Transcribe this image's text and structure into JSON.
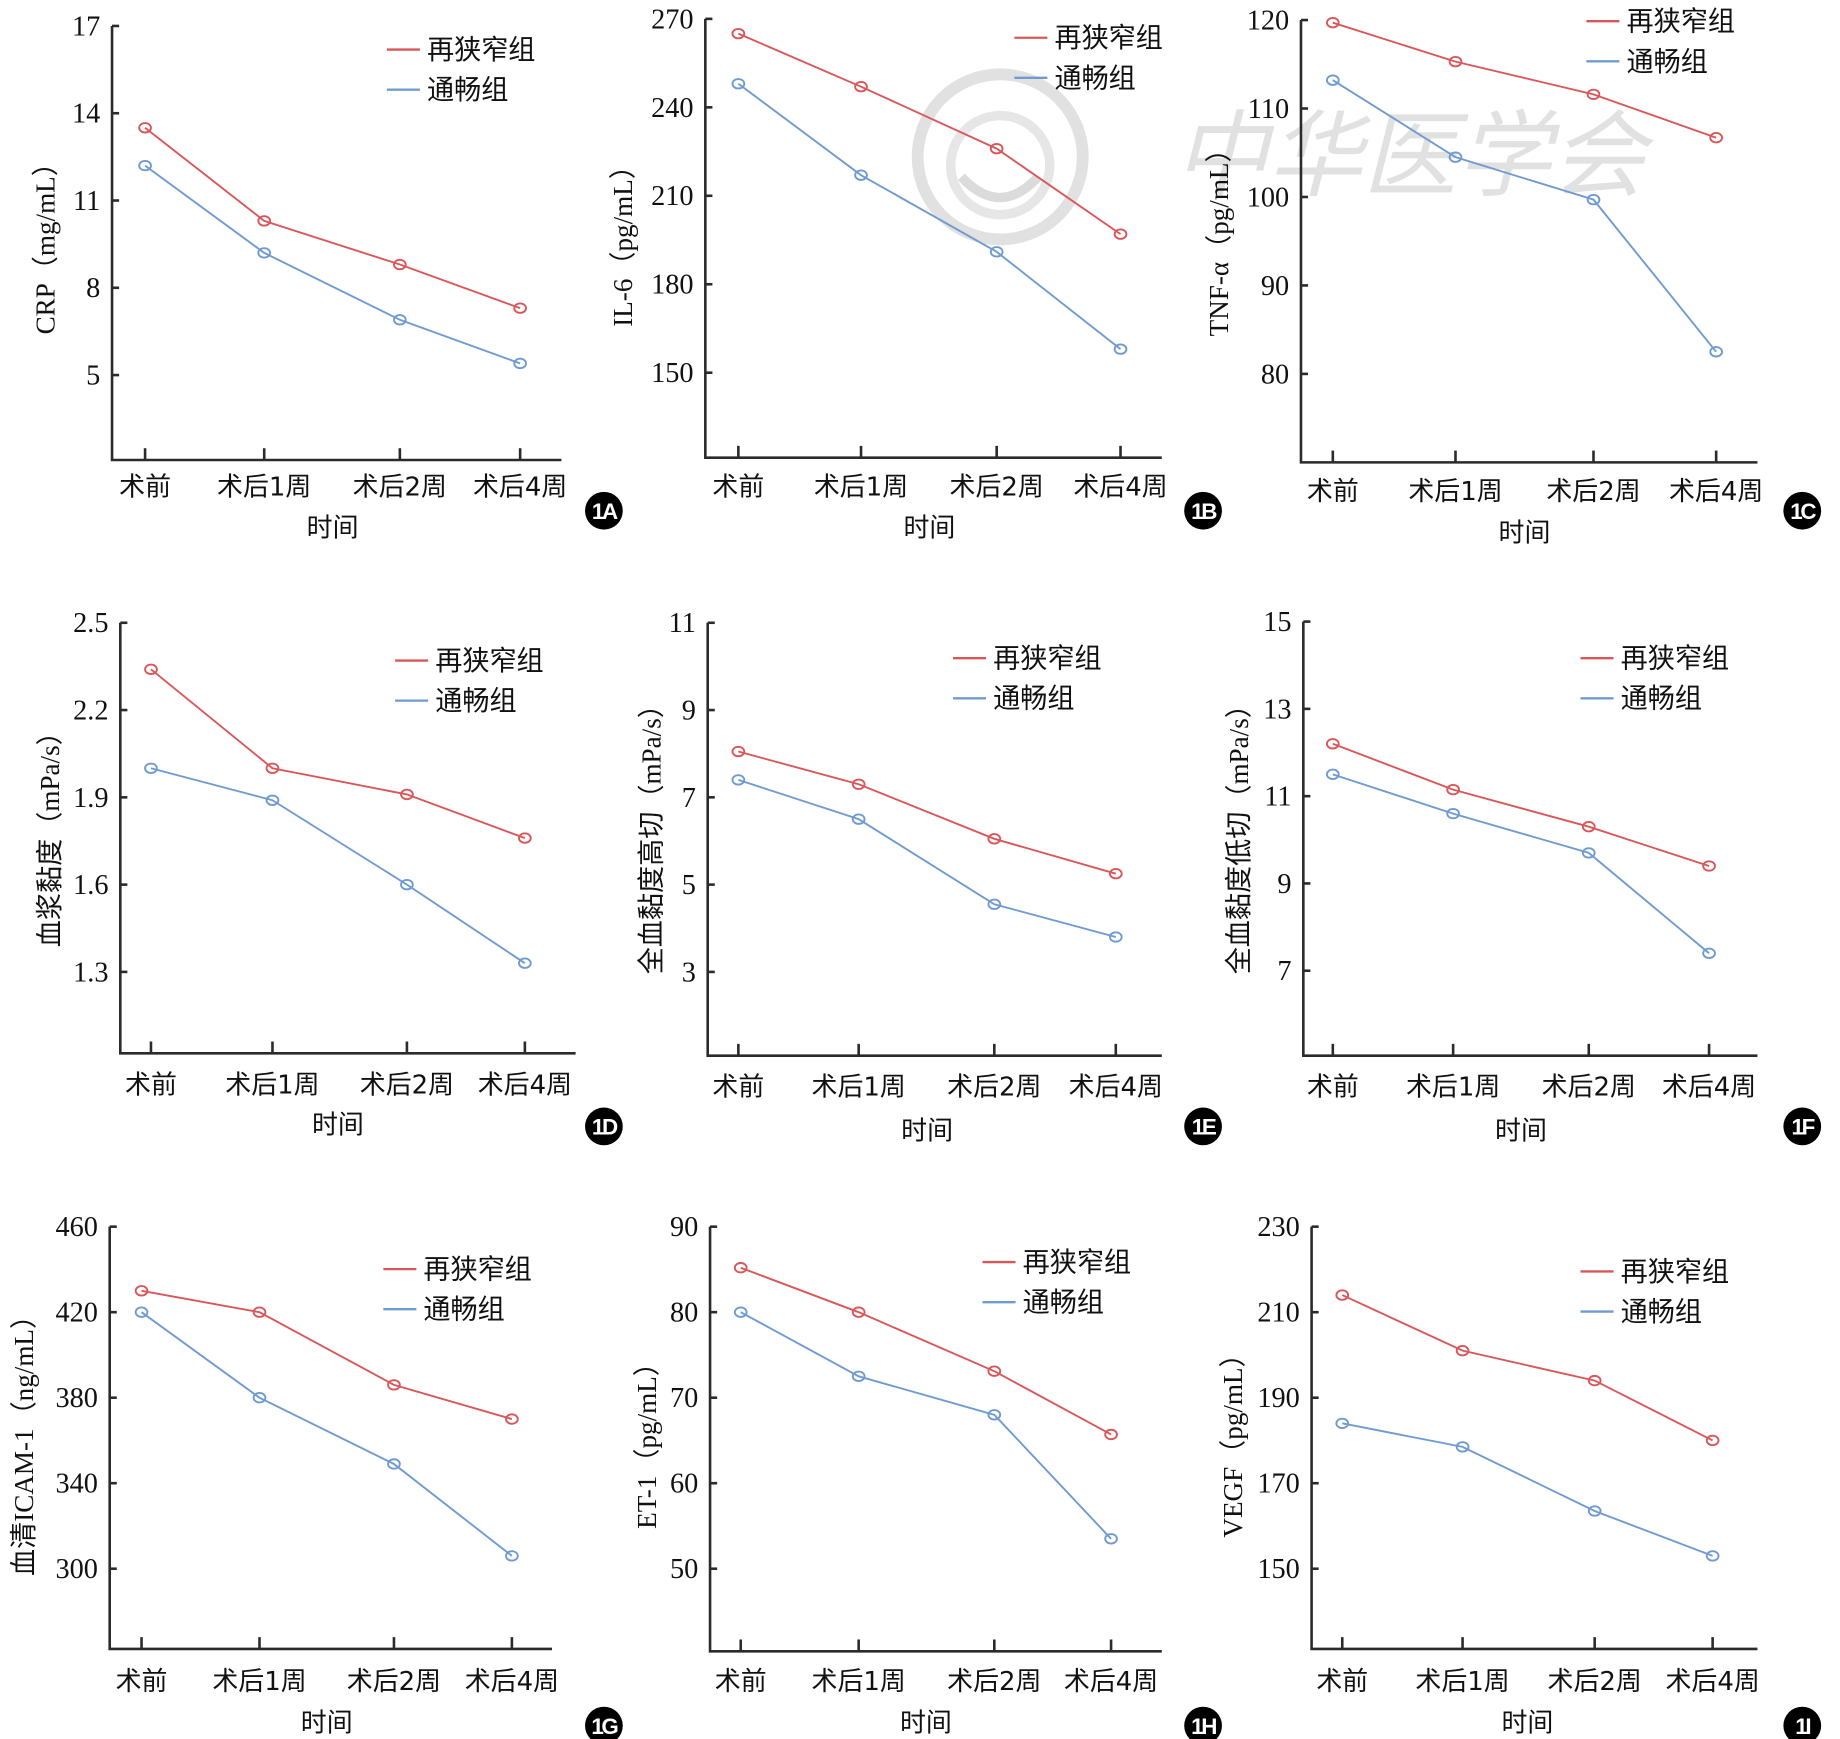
{
  "figure": {
    "badge_prefix": "1",
    "colors": {
      "restenosis": "#d9575a",
      "patent": "#6f9bd1",
      "axis": "#2b2b2b",
      "badge": "#000000"
    },
    "watermark_text": "中华医学会"
  },
  "chart_data": [
    {
      "id": "A",
      "badge": "1A",
      "type": "line",
      "title": "",
      "ylabel": "CRP（mg/mL）",
      "xlabel": "时间",
      "categories": [
        "术前",
        "术后1周",
        "术后2周",
        "术后4周"
      ],
      "yticks": [
        17,
        14,
        11,
        8,
        5
      ],
      "ylim": [
        2.1,
        17
      ],
      "grid": false,
      "legend": "top-right",
      "series": [
        {
          "name": "再狭窄组",
          "color": "#d9575a",
          "values": [
            13.5,
            10.3,
            8.8,
            7.3
          ]
        },
        {
          "name": "通畅组",
          "color": "#6f9bd1",
          "values": [
            12.2,
            9.2,
            6.9,
            5.4
          ]
        }
      ]
    },
    {
      "id": "B",
      "badge": "1B",
      "type": "line",
      "title": "",
      "ylabel": "IL-6（pg/mL）",
      "xlabel": "时间",
      "categories": [
        "术前",
        "术后1周",
        "术后2周",
        "术后4周"
      ],
      "yticks": [
        270,
        240,
        210,
        180,
        150
      ],
      "ylim": [
        120,
        270
      ],
      "grid": false,
      "legend": "top-right",
      "series": [
        {
          "name": "再狭窄组",
          "color": "#d9575a",
          "values": [
            265,
            247,
            226,
            197
          ]
        },
        {
          "name": "通畅组",
          "color": "#6f9bd1",
          "values": [
            248,
            217,
            191,
            158
          ]
        }
      ]
    },
    {
      "id": "C",
      "badge": "1C",
      "type": "line",
      "title": "",
      "ylabel": "TNF-α（pg/mL）",
      "xlabel": "时间",
      "categories": [
        "术前",
        "术后1周",
        "术后2周",
        "术后4周"
      ],
      "yticks": [
        120,
        110,
        100,
        90,
        80
      ],
      "ylim": [
        70.3,
        120
      ],
      "grid": false,
      "legend": "top-right",
      "series": [
        {
          "name": "再狭窄组",
          "color": "#d9575a",
          "values": [
            119.7,
            115.3,
            111.6,
            106.7
          ]
        },
        {
          "name": "通畅组",
          "color": "#6f9bd1",
          "values": [
            113.2,
            104.5,
            99.7,
            82.5
          ]
        }
      ]
    },
    {
      "id": "D",
      "badge": "1D",
      "type": "line",
      "title": "",
      "ylabel": "血浆黏度（mPa/s）",
      "xlabel": "时间",
      "categories": [
        "术前",
        "术后1周",
        "术后2周",
        "术后4周"
      ],
      "yticks": [
        2.5,
        2.2,
        1.9,
        1.6,
        1.3
      ],
      "ylim": [
        1.03,
        2.5
      ],
      "grid": false,
      "legend": "top-right",
      "series": [
        {
          "name": "再狭窄组",
          "color": "#d9575a",
          "values": [
            2.34,
            2.0,
            1.91,
            1.76
          ]
        },
        {
          "name": "通畅组",
          "color": "#6f9bd1",
          "values": [
            2.0,
            1.89,
            1.6,
            1.33
          ]
        }
      ]
    },
    {
      "id": "E",
      "badge": "1E",
      "type": "line",
      "title": "",
      "ylabel": "全血黏度高切（mPa/s）",
      "xlabel": "时间",
      "categories": [
        "术前",
        "术后1周",
        "术后2周",
        "术后4周"
      ],
      "yticks": [
        11,
        9,
        7,
        5,
        3
      ],
      "ylim": [
        1.1,
        11
      ],
      "grid": false,
      "legend": "top-right",
      "series": [
        {
          "name": "再狭窄组",
          "color": "#d9575a",
          "values": [
            8.05,
            7.3,
            6.05,
            5.25
          ]
        },
        {
          "name": "通畅组",
          "color": "#6f9bd1",
          "values": [
            7.4,
            6.5,
            4.55,
            3.8
          ]
        }
      ]
    },
    {
      "id": "F",
      "badge": "1F",
      "type": "line",
      "title": "",
      "ylabel": "全血黏度低切（mPa/s）",
      "xlabel": "时间",
      "categories": [
        "术前",
        "术后1周",
        "术后2周",
        "术后4周"
      ],
      "yticks": [
        15,
        13,
        11,
        9,
        7
      ],
      "ylim": [
        5.1,
        15
      ],
      "grid": false,
      "legend": "top-right",
      "series": [
        {
          "name": "再狭窄组",
          "color": "#d9575a",
          "values": [
            12.2,
            11.15,
            10.3,
            9.4
          ]
        },
        {
          "name": "通畅组",
          "color": "#6f9bd1",
          "values": [
            11.5,
            10.6,
            9.7,
            7.4
          ]
        }
      ]
    },
    {
      "id": "G",
      "badge": "1G",
      "type": "line",
      "title": "",
      "ylabel": "血清ICAM-1（ng/mL）",
      "xlabel": "时间",
      "categories": [
        "术前",
        "术后1周",
        "术后2周",
        "术后4周"
      ],
      "yticks": [
        460,
        420,
        380,
        340,
        300
      ],
      "ylim": [
        264,
        460
      ],
      "grid": false,
      "legend": "top-right",
      "series": [
        {
          "name": "再狭窄组",
          "color": "#d9575a",
          "values": [
            430,
            420,
            386,
            370
          ]
        },
        {
          "name": "通畅组",
          "color": "#6f9bd1",
          "values": [
            420,
            380,
            349,
            306
          ]
        }
      ]
    },
    {
      "id": "H",
      "badge": "1H",
      "type": "line",
      "title": "",
      "ylabel": "ET-1（pg/mL）",
      "xlabel": "时间",
      "categories": [
        "术前",
        "术后1周",
        "术后2周",
        "术后4周"
      ],
      "yticks": [
        90,
        80,
        70,
        60,
        50
      ],
      "ylim": [
        41,
        90
      ],
      "grid": false,
      "legend": "top-right",
      "series": [
        {
          "name": "再狭窄组",
          "color": "#d9575a",
          "values": [
            85.2,
            80,
            73.1,
            65.7
          ]
        },
        {
          "name": "通畅组",
          "color": "#6f9bd1",
          "values": [
            80,
            72.5,
            68,
            53.5
          ]
        }
      ]
    },
    {
      "id": "I",
      "badge": "1I",
      "type": "line",
      "title": "",
      "ylabel": "VEGF（pg/mL）",
      "xlabel": "时间",
      "categories": [
        "术前",
        "术后1周",
        "术后2周",
        "术后4周"
      ],
      "yticks": [
        230,
        210,
        190,
        170,
        150
      ],
      "ylim": [
        132,
        230
      ],
      "grid": false,
      "legend": "top-right",
      "series": [
        {
          "name": "再狭窄组",
          "color": "#d9575a",
          "values": [
            214,
            201,
            194,
            180
          ]
        },
        {
          "name": "通畅组",
          "color": "#6f9bd1",
          "values": [
            184,
            178.5,
            163.5,
            153
          ]
        }
      ]
    }
  ]
}
